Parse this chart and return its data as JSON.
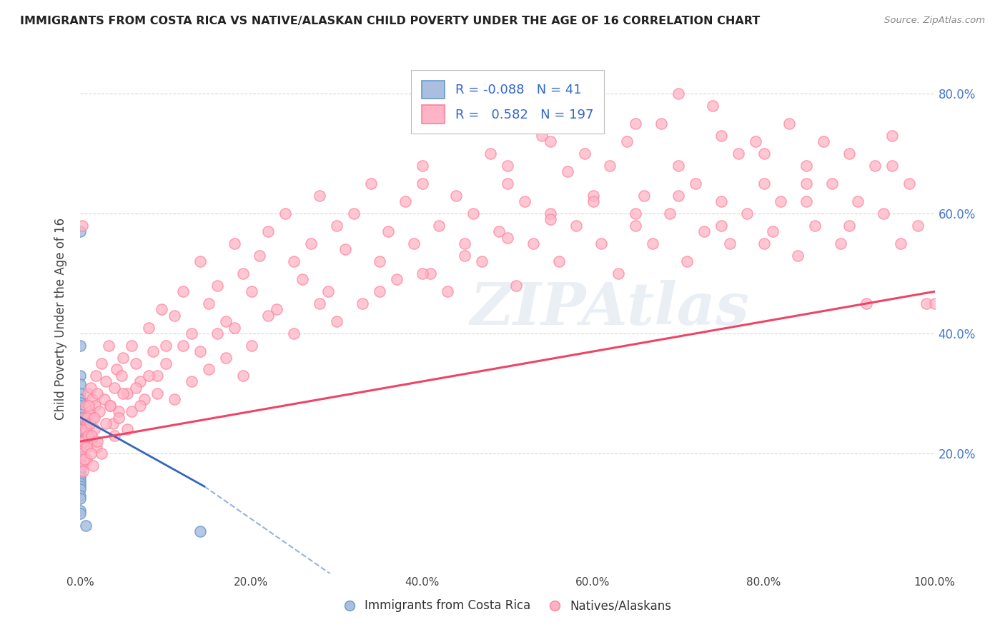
{
  "title": "IMMIGRANTS FROM COSTA RICA VS NATIVE/ALASKAN CHILD POVERTY UNDER THE AGE OF 16 CORRELATION CHART",
  "source": "Source: ZipAtlas.com",
  "ylabel": "Child Poverty Under the Age of 16",
  "watermark": "ZIPAtlas",
  "legend_r1": "-0.088",
  "legend_n1": "41",
  "legend_r2": "0.582",
  "legend_n2": "197",
  "background_color": "#ffffff",
  "grid_color": "#cccccc",
  "blue_scatter_color": "#aabfdf",
  "blue_edge_color": "#6699cc",
  "pink_scatter_color": "#ffb3c6",
  "pink_edge_color": "#ff8099",
  "blue_line_color": "#3366bb",
  "pink_line_color": "#ee4466",
  "blue_scatter": [
    [
      0.0,
      57.0
    ],
    [
      0.0,
      38.0
    ],
    [
      0.0,
      33.0
    ],
    [
      0.0,
      31.5
    ],
    [
      0.0,
      30.0
    ],
    [
      0.0,
      29.0
    ],
    [
      0.0,
      28.5
    ],
    [
      0.0,
      28.0
    ],
    [
      0.0,
      27.0
    ],
    [
      0.0,
      26.5
    ],
    [
      0.0,
      26.0
    ],
    [
      0.0,
      25.5
    ],
    [
      0.0,
      25.0
    ],
    [
      0.0,
      24.5
    ],
    [
      0.0,
      24.0
    ],
    [
      0.0,
      23.5
    ],
    [
      0.0,
      23.0
    ],
    [
      0.0,
      22.5
    ],
    [
      0.0,
      22.0
    ],
    [
      0.0,
      21.5
    ],
    [
      0.0,
      21.0
    ],
    [
      0.0,
      20.5
    ],
    [
      0.0,
      20.0
    ],
    [
      0.0,
      19.5
    ],
    [
      0.0,
      19.0
    ],
    [
      0.0,
      18.5
    ],
    [
      0.0,
      18.0
    ],
    [
      0.0,
      17.5
    ],
    [
      0.0,
      17.0
    ],
    [
      0.0,
      16.5
    ],
    [
      0.0,
      16.0
    ],
    [
      0.0,
      15.5
    ],
    [
      0.0,
      15.0
    ],
    [
      0.0,
      14.5
    ],
    [
      0.0,
      14.0
    ],
    [
      0.0,
      13.0
    ],
    [
      0.0,
      12.5
    ],
    [
      0.0,
      10.5
    ],
    [
      0.0,
      10.0
    ],
    [
      0.6,
      8.0
    ],
    [
      14.0,
      7.0
    ]
  ],
  "pink_scatter": [
    [
      0.2,
      22.0
    ],
    [
      0.3,
      24.0
    ],
    [
      0.4,
      21.0
    ],
    [
      0.5,
      26.0
    ],
    [
      0.6,
      28.0
    ],
    [
      0.7,
      19.0
    ],
    [
      0.8,
      25.0
    ],
    [
      0.9,
      30.0
    ],
    [
      1.0,
      23.0
    ],
    [
      1.1,
      27.0
    ],
    [
      1.2,
      31.0
    ],
    [
      1.3,
      22.0
    ],
    [
      1.4,
      29.0
    ],
    [
      1.5,
      26.0
    ],
    [
      1.6,
      24.0
    ],
    [
      1.7,
      28.0
    ],
    [
      1.8,
      33.0
    ],
    [
      1.9,
      21.0
    ],
    [
      2.0,
      30.0
    ],
    [
      2.2,
      27.0
    ],
    [
      2.5,
      35.0
    ],
    [
      2.8,
      29.0
    ],
    [
      3.0,
      32.0
    ],
    [
      3.3,
      38.0
    ],
    [
      3.5,
      28.0
    ],
    [
      3.8,
      25.0
    ],
    [
      4.0,
      31.0
    ],
    [
      4.2,
      34.0
    ],
    [
      4.5,
      27.0
    ],
    [
      4.8,
      33.0
    ],
    [
      5.0,
      36.0
    ],
    [
      5.5,
      30.0
    ],
    [
      6.0,
      38.0
    ],
    [
      6.5,
      35.0
    ],
    [
      7.0,
      32.0
    ],
    [
      7.5,
      29.0
    ],
    [
      8.0,
      41.0
    ],
    [
      8.5,
      37.0
    ],
    [
      9.0,
      33.0
    ],
    [
      9.5,
      44.0
    ],
    [
      10.0,
      38.0
    ],
    [
      11.0,
      43.0
    ],
    [
      12.0,
      47.0
    ],
    [
      13.0,
      40.0
    ],
    [
      14.0,
      52.0
    ],
    [
      15.0,
      45.0
    ],
    [
      16.0,
      48.0
    ],
    [
      17.0,
      42.0
    ],
    [
      18.0,
      55.0
    ],
    [
      19.0,
      50.0
    ],
    [
      20.0,
      47.0
    ],
    [
      21.0,
      53.0
    ],
    [
      22.0,
      57.0
    ],
    [
      23.0,
      44.0
    ],
    [
      24.0,
      60.0
    ],
    [
      25.0,
      52.0
    ],
    [
      26.0,
      49.0
    ],
    [
      27.0,
      55.0
    ],
    [
      28.0,
      63.0
    ],
    [
      29.0,
      47.0
    ],
    [
      30.0,
      58.0
    ],
    [
      31.0,
      54.0
    ],
    [
      32.0,
      60.0
    ],
    [
      33.0,
      45.0
    ],
    [
      34.0,
      65.0
    ],
    [
      35.0,
      52.0
    ],
    [
      36.0,
      57.0
    ],
    [
      37.0,
      49.0
    ],
    [
      38.0,
      62.0
    ],
    [
      39.0,
      55.0
    ],
    [
      40.0,
      68.0
    ],
    [
      41.0,
      50.0
    ],
    [
      42.0,
      58.0
    ],
    [
      43.0,
      47.0
    ],
    [
      44.0,
      63.0
    ],
    [
      45.0,
      55.0
    ],
    [
      46.0,
      60.0
    ],
    [
      47.0,
      52.0
    ],
    [
      48.0,
      70.0
    ],
    [
      49.0,
      57.0
    ],
    [
      50.0,
      65.0
    ],
    [
      51.0,
      48.0
    ],
    [
      52.0,
      62.0
    ],
    [
      53.0,
      55.0
    ],
    [
      54.0,
      73.0
    ],
    [
      55.0,
      60.0
    ],
    [
      56.0,
      52.0
    ],
    [
      57.0,
      67.0
    ],
    [
      58.0,
      58.0
    ],
    [
      59.0,
      70.0
    ],
    [
      60.0,
      63.0
    ],
    [
      61.0,
      55.0
    ],
    [
      62.0,
      68.0
    ],
    [
      63.0,
      50.0
    ],
    [
      64.0,
      72.0
    ],
    [
      65.0,
      58.0
    ],
    [
      66.0,
      63.0
    ],
    [
      67.0,
      55.0
    ],
    [
      68.0,
      75.0
    ],
    [
      69.0,
      60.0
    ],
    [
      70.0,
      68.0
    ],
    [
      71.0,
      52.0
    ],
    [
      72.0,
      65.0
    ],
    [
      73.0,
      57.0
    ],
    [
      74.0,
      78.0
    ],
    [
      75.0,
      62.0
    ],
    [
      76.0,
      55.0
    ],
    [
      77.0,
      70.0
    ],
    [
      78.0,
      60.0
    ],
    [
      79.0,
      72.0
    ],
    [
      80.0,
      65.0
    ],
    [
      81.0,
      57.0
    ],
    [
      82.0,
      62.0
    ],
    [
      83.0,
      75.0
    ],
    [
      84.0,
      53.0
    ],
    [
      85.0,
      68.0
    ],
    [
      86.0,
      58.0
    ],
    [
      87.0,
      72.0
    ],
    [
      88.0,
      65.0
    ],
    [
      89.0,
      55.0
    ],
    [
      90.0,
      70.0
    ],
    [
      91.0,
      62.0
    ],
    [
      92.0,
      45.0
    ],
    [
      93.0,
      68.0
    ],
    [
      94.0,
      60.0
    ],
    [
      95.0,
      73.0
    ],
    [
      96.0,
      55.0
    ],
    [
      97.0,
      65.0
    ],
    [
      98.0,
      58.0
    ],
    [
      99.0,
      45.0
    ],
    [
      0.1,
      18.0
    ],
    [
      0.2,
      20.0
    ],
    [
      0.3,
      17.0
    ],
    [
      0.4,
      22.0
    ],
    [
      0.5,
      19.0
    ],
    [
      0.6,
      24.0
    ],
    [
      0.7,
      21.0
    ],
    [
      0.8,
      26.0
    ],
    [
      0.9,
      23.0
    ],
    [
      1.0,
      28.0
    ],
    [
      1.1,
      25.0
    ],
    [
      1.2,
      20.0
    ],
    [
      1.3,
      23.0
    ],
    [
      1.5,
      18.0
    ],
    [
      1.6,
      26.0
    ],
    [
      2.0,
      22.0
    ],
    [
      2.5,
      20.0
    ],
    [
      3.0,
      25.0
    ],
    [
      3.5,
      28.0
    ],
    [
      4.0,
      23.0
    ],
    [
      4.5,
      26.0
    ],
    [
      5.0,
      30.0
    ],
    [
      5.5,
      24.0
    ],
    [
      6.0,
      27.0
    ],
    [
      6.5,
      31.0
    ],
    [
      7.0,
      28.0
    ],
    [
      8.0,
      33.0
    ],
    [
      9.0,
      30.0
    ],
    [
      10.0,
      35.0
    ],
    [
      11.0,
      29.0
    ],
    [
      12.0,
      38.0
    ],
    [
      13.0,
      32.0
    ],
    [
      14.0,
      37.0
    ],
    [
      15.0,
      34.0
    ],
    [
      16.0,
      40.0
    ],
    [
      17.0,
      36.0
    ],
    [
      18.0,
      41.0
    ],
    [
      19.0,
      33.0
    ],
    [
      20.0,
      38.0
    ],
    [
      22.0,
      43.0
    ],
    [
      25.0,
      40.0
    ],
    [
      28.0,
      45.0
    ],
    [
      30.0,
      42.0
    ],
    [
      35.0,
      47.0
    ],
    [
      40.0,
      50.0
    ],
    [
      45.0,
      53.0
    ],
    [
      50.0,
      56.0
    ],
    [
      55.0,
      59.0
    ],
    [
      60.0,
      62.0
    ],
    [
      65.0,
      60.0
    ],
    [
      70.0,
      63.0
    ],
    [
      75.0,
      58.0
    ],
    [
      80.0,
      55.0
    ],
    [
      85.0,
      62.0
    ],
    [
      90.0,
      58.0
    ],
    [
      95.0,
      68.0
    ],
    [
      100.0,
      45.0
    ],
    [
      0.2,
      58.0
    ],
    [
      80.0,
      70.0
    ],
    [
      75.0,
      73.0
    ],
    [
      50.0,
      68.0
    ],
    [
      60.0,
      77.0
    ],
    [
      55.0,
      72.0
    ],
    [
      65.0,
      75.0
    ],
    [
      40.0,
      65.0
    ],
    [
      70.0,
      80.0
    ],
    [
      85.0,
      65.0
    ]
  ],
  "blue_line": [
    [
      0.0,
      26.0
    ],
    [
      14.5,
      14.5
    ]
  ],
  "blue_dashed_line": [
    [
      14.5,
      14.5
    ],
    [
      100.0,
      -70.0
    ]
  ],
  "pink_line": [
    [
      0.0,
      22.0
    ],
    [
      100.0,
      47.0
    ]
  ],
  "xlim": [
    0.0,
    100.0
  ],
  "ylim": [
    0.0,
    85.0
  ],
  "xticks": [
    0.0,
    20.0,
    40.0,
    60.0,
    80.0,
    100.0
  ],
  "xtick_labels": [
    "0.0%",
    "20.0%",
    "40.0%",
    "60.0%",
    "80.0%",
    "100.0%"
  ],
  "yticks": [
    0.0,
    20.0,
    40.0,
    60.0,
    80.0
  ],
  "ytick_labels_left": [
    "",
    "",
    "",
    "",
    ""
  ],
  "ytick_labels_right": [
    "",
    "20.0%",
    "40.0%",
    "60.0%",
    "80.0%"
  ]
}
